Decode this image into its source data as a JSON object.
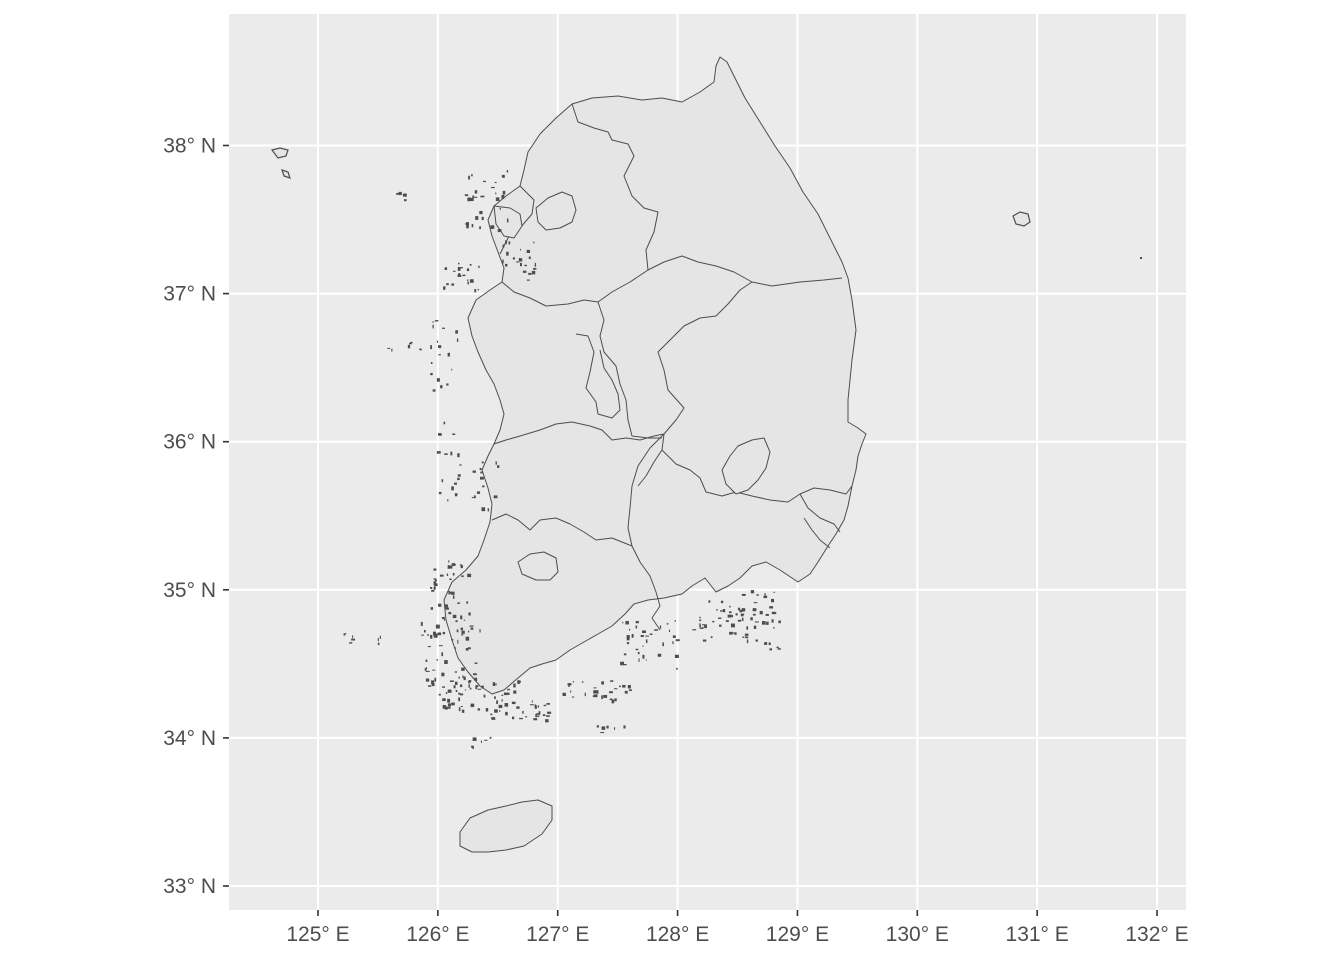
{
  "plot": {
    "panel_background": "#ebebeb",
    "grid_color": "#ffffff",
    "region_fill": "#e5e5e5",
    "border_color": "#4d4d4d"
  },
  "x_axis": {
    "ticks": [
      {
        "value": 125,
        "label": "125° E"
      },
      {
        "value": 126,
        "label": "126° E"
      },
      {
        "value": 127,
        "label": "127° E"
      },
      {
        "value": 128,
        "label": "128° E"
      },
      {
        "value": 129,
        "label": "129° E"
      },
      {
        "value": 130,
        "label": "130° E"
      },
      {
        "value": 131,
        "label": "131° E"
      },
      {
        "value": 132,
        "label": "132° E"
      }
    ]
  },
  "y_axis": {
    "ticks": [
      {
        "value": 33,
        "label": "33° N"
      },
      {
        "value": 34,
        "label": "34° N"
      },
      {
        "value": 35,
        "label": "35° N"
      },
      {
        "value": 36,
        "label": "36° N"
      },
      {
        "value": 37,
        "label": "37° N"
      },
      {
        "value": 38,
        "label": "38° N"
      }
    ]
  }
}
